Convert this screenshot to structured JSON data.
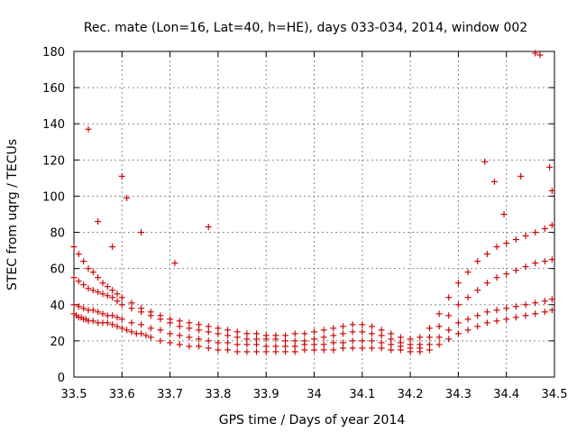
{
  "chart_data": {
    "type": "scatter",
    "title": "Rec. mate (Lon=16, Lat=40, h=HE), days 033-034, 2014, window 002",
    "xlabel": "GPS time / Days of year 2014",
    "ylabel": "STEC from uqrg / TECUs",
    "xlim": [
      33.5,
      34.5
    ],
    "ylim": [
      0,
      180
    ],
    "xticks": [
      33.5,
      33.6,
      33.7,
      33.8,
      33.9,
      34.0,
      34.1,
      34.2,
      34.3,
      34.4,
      34.5
    ],
    "xtick_labels": [
      "33.5",
      "33.6",
      "33.7",
      "33.8",
      "33.9",
      "34",
      "34.1",
      "34.2",
      "34.3",
      "34.4",
      "34.5"
    ],
    "yticks": [
      0,
      20,
      40,
      60,
      80,
      100,
      120,
      140,
      160,
      180
    ],
    "ytick_labels": [
      "0",
      "20",
      "40",
      "60",
      "80",
      "100",
      "120",
      "140",
      "160",
      "180"
    ],
    "grid": true,
    "marker": "+",
    "color": "#cc0000",
    "series": [
      {
        "x": [
          33.5,
          33.505,
          33.51,
          33.515,
          33.52,
          33.525,
          33.53,
          33.54,
          33.55,
          33.56,
          33.57,
          33.58,
          33.59,
          33.6,
          33.61,
          33.62,
          33.63,
          33.64,
          33.65,
          33.66,
          33.68,
          33.7,
          33.72,
          33.74,
          33.76,
          33.78,
          33.8,
          33.82,
          33.84,
          33.86,
          33.88,
          33.9,
          33.92,
          33.94,
          33.96,
          33.98,
          34.0,
          34.02,
          34.04,
          34.06,
          34.08,
          34.1,
          34.12,
          34.14,
          34.16,
          34.18,
          34.2,
          34.22,
          34.24,
          34.26,
          34.28,
          34.3,
          34.32,
          34.34,
          34.36,
          34.38,
          34.4,
          34.42,
          34.44,
          34.46,
          34.48,
          34.495
        ],
        "y": [
          35,
          34,
          33,
          33,
          32,
          32,
          31,
          31,
          30,
          30,
          30,
          29,
          28,
          27,
          26,
          25,
          24,
          24,
          23,
          22,
          20,
          19,
          18,
          17,
          17,
          16,
          15,
          15,
          14,
          14,
          14,
          14,
          14,
          14,
          14,
          15,
          15,
          15,
          15,
          16,
          16,
          16,
          16,
          16,
          15,
          15,
          14,
          14,
          15,
          18,
          21,
          24,
          26,
          28,
          30,
          31,
          32,
          33,
          34,
          35,
          36,
          37
        ]
      },
      {
        "x": [
          33.5,
          33.51,
          33.52,
          33.53,
          33.54,
          33.55,
          33.56,
          33.57,
          33.58,
          33.59,
          33.6,
          33.62,
          33.64,
          33.66,
          33.68,
          33.7,
          33.72,
          33.74,
          33.76,
          33.78,
          33.8,
          33.82,
          33.84,
          33.86,
          33.88,
          33.9,
          33.92,
          33.94,
          33.96,
          33.98,
          34.0,
          34.02,
          34.04,
          34.06,
          34.08,
          34.1,
          34.12,
          34.14,
          34.16,
          34.18,
          34.2,
          34.22,
          34.24,
          34.26,
          34.28,
          34.3,
          34.32,
          34.34,
          34.36,
          34.38,
          34.4,
          34.42,
          34.44,
          34.46,
          34.48,
          34.495
        ],
        "y": [
          40,
          39,
          38,
          37,
          37,
          36,
          35,
          34,
          34,
          33,
          32,
          30,
          29,
          27,
          26,
          24,
          23,
          22,
          21,
          20,
          19,
          19,
          18,
          18,
          18,
          17,
          17,
          17,
          17,
          18,
          18,
          18,
          19,
          19,
          20,
          20,
          20,
          19,
          18,
          17,
          16,
          16,
          18,
          22,
          26,
          30,
          32,
          34,
          36,
          37,
          38,
          39,
          40,
          41,
          42,
          43
        ]
      },
      {
        "x": [
          33.5,
          33.51,
          33.52,
          33.53,
          33.54,
          33.55,
          33.56,
          33.57,
          33.58,
          33.59,
          33.6,
          33.62,
          33.64,
          33.66,
          33.68,
          33.7,
          33.72,
          33.74,
          33.76,
          33.78,
          33.8,
          33.82,
          33.84,
          33.86,
          33.88,
          33.9,
          33.92,
          33.94,
          33.96,
          33.98,
          34.0,
          34.02,
          34.04,
          34.06,
          34.08,
          34.1,
          34.12,
          34.14,
          34.16,
          34.18,
          34.2,
          34.22,
          34.24,
          34.26,
          34.28,
          34.3,
          34.32,
          34.34,
          34.36,
          34.38,
          34.4,
          34.42,
          34.44,
          34.46,
          34.48,
          34.495
        ],
        "y": [
          55,
          53,
          51,
          49,
          48,
          47,
          46,
          45,
          44,
          42,
          40,
          38,
          36,
          34,
          32,
          30,
          28,
          27,
          26,
          25,
          24,
          23,
          22,
          21,
          21,
          21,
          21,
          20,
          20,
          20,
          21,
          22,
          23,
          24,
          25,
          25,
          24,
          23,
          21,
          19,
          18,
          18,
          22,
          28,
          34,
          40,
          44,
          48,
          52,
          55,
          57,
          59,
          61,
          63,
          64,
          65
        ]
      },
      {
        "x": [
          33.5,
          33.51,
          33.52,
          33.53,
          33.54,
          33.55,
          33.56,
          33.57,
          33.58,
          33.59,
          33.6,
          33.62,
          33.64,
          33.66,
          33.68,
          33.7,
          33.72,
          33.74,
          33.76,
          33.78,
          33.8,
          33.82,
          33.84,
          33.86,
          33.88,
          33.9,
          33.92,
          33.94,
          33.96,
          33.98,
          34.0,
          34.02,
          34.04,
          34.06,
          34.08,
          34.1,
          34.12,
          34.14,
          34.16,
          34.18,
          34.2,
          34.22,
          34.24,
          34.26,
          34.28,
          34.3,
          34.32,
          34.34,
          34.36,
          34.38,
          34.4,
          34.42,
          34.44,
          34.46,
          34.48,
          34.495
        ],
        "y": [
          72,
          68,
          64,
          60,
          58,
          55,
          52,
          50,
          48,
          46,
          44,
          41,
          38,
          36,
          34,
          32,
          31,
          30,
          29,
          28,
          27,
          26,
          25,
          24,
          24,
          23,
          23,
          23,
          24,
          24,
          25,
          26,
          27,
          28,
          29,
          29,
          28,
          26,
          24,
          22,
          21,
          22,
          27,
          35,
          44,
          52,
          58,
          64,
          68,
          72,
          74,
          76,
          78,
          80,
          82,
          84
        ]
      },
      {
        "x": [
          33.53,
          33.55,
          33.58,
          33.6,
          33.61,
          33.64,
          33.71,
          33.78,
          34.355,
          34.375,
          34.395,
          34.43,
          34.46,
          34.47,
          34.49,
          34.495
        ],
        "y": [
          137,
          86,
          72,
          111,
          99,
          80,
          63,
          83,
          119,
          108,
          90,
          111,
          179,
          178,
          116,
          103
        ]
      }
    ]
  }
}
